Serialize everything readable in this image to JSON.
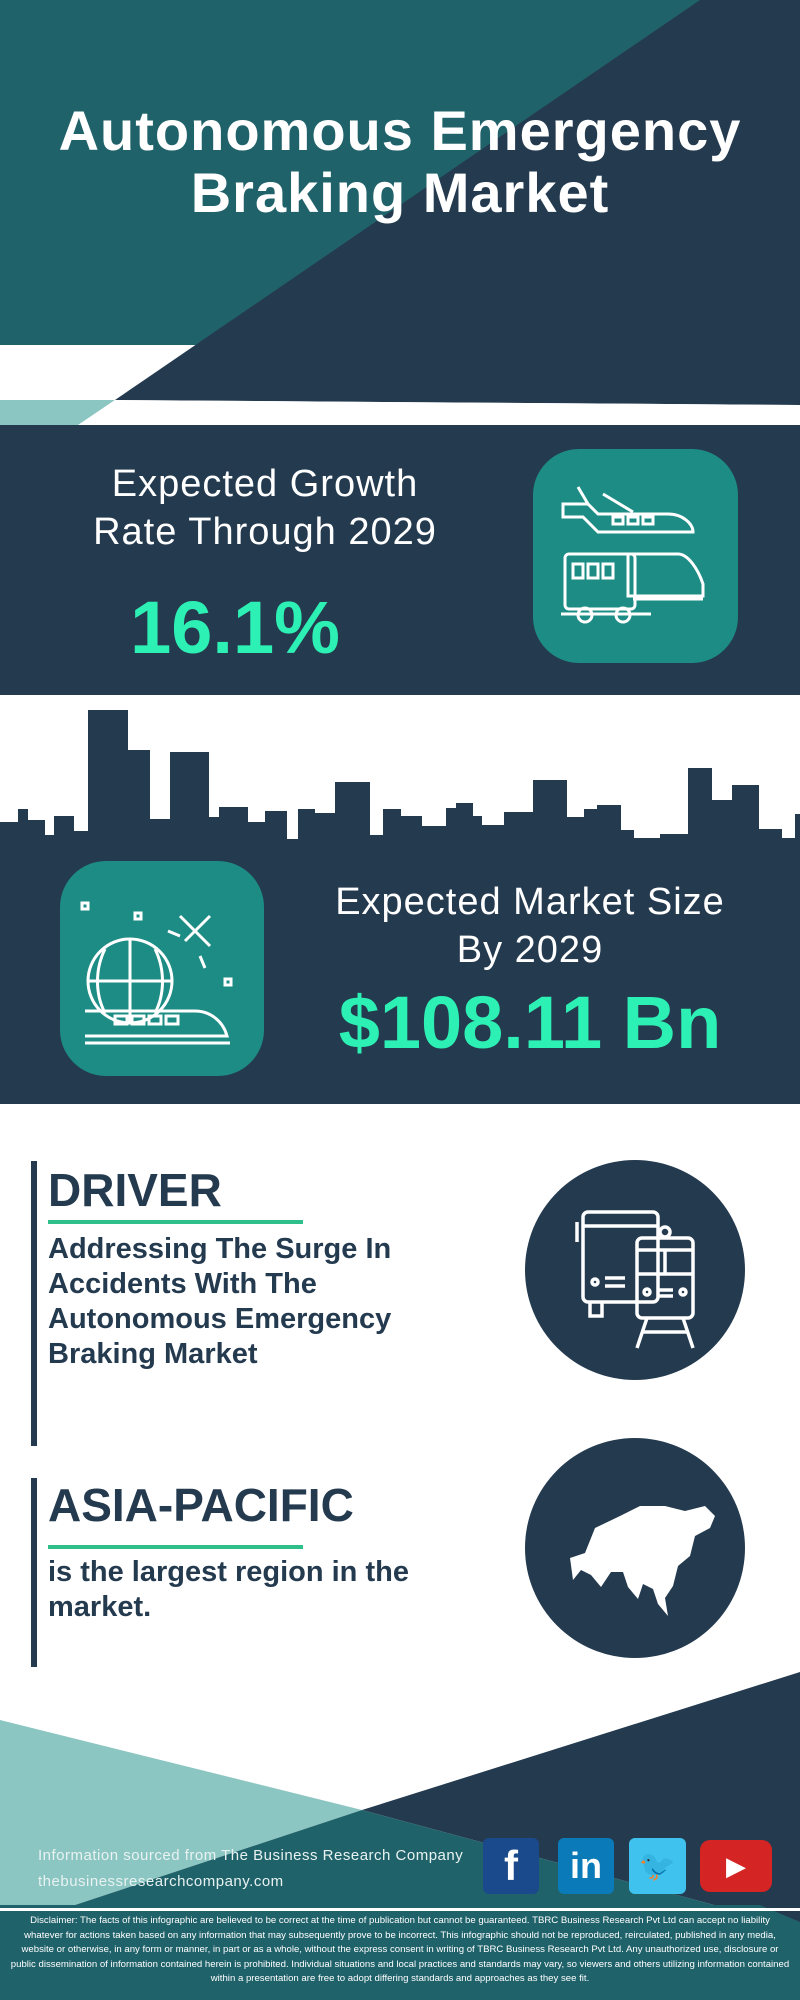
{
  "header": {
    "title_line1": "Autonomous Emergency",
    "title_line2": "Braking Market"
  },
  "growth": {
    "label_line1": "Expected Growth",
    "label_line2": "Rate Through 2029",
    "value": "16.1%",
    "icon": "transport-plane-train-bus-icon"
  },
  "market_size": {
    "label_line1": "Expected Market Size",
    "label_line2": "By 2029",
    "value": "$108.11 Bn",
    "icon": "globe-plane-train-icon"
  },
  "driver": {
    "heading": "DRIVER",
    "text": "Addressing The Surge In Accidents With The Autonomous Emergency Braking Market",
    "icon": "bus-train-icon"
  },
  "region": {
    "heading": "ASIA-PACIFIC",
    "text": "is the largest region in the market.",
    "icon": "asia-map-icon"
  },
  "footer": {
    "source": "Information sourced from The Business Research Company",
    "website": "thebusinessresearchcompany.com",
    "social": [
      {
        "name": "facebook",
        "glyph": "f",
        "color": "#1b4a8c"
      },
      {
        "name": "linkedin",
        "glyph": "in",
        "color": "#0a7bb8"
      },
      {
        "name": "twitter",
        "glyph": "🐦",
        "color": "#3fc3ee"
      },
      {
        "name": "youtube",
        "glyph": "▶",
        "color": "#d42424"
      }
    ]
  },
  "disclaimer": "Disclaimer: The facts of this infographic are believed to be correct at the time of publication but cannot be guaranteed. TBRC Business Research Pvt Ltd can accept no liability whatever for actions taken based on any information that may subsequently prove to be incorrect. This infographic should not be reproduced, reirculated, published in any media, website or otherwise, in any form or manner, in part or as a whole, without the express consent in writing of TBRC Business Research Pvt Ltd. Any unauthorized use, disclosure or public dissemination of information contained herein is prohibited. Individual situations and local practices and standards may vary, so viewers and others utilizing information contained within a presentation are free to adopt differing standards and approaches as they see fit.",
  "colors": {
    "navy": "#243a4f",
    "teal": "#20626a",
    "light_teal": "#8cc6c2",
    "accent": "#2df0b4",
    "icon_box": "#1c8c84"
  }
}
